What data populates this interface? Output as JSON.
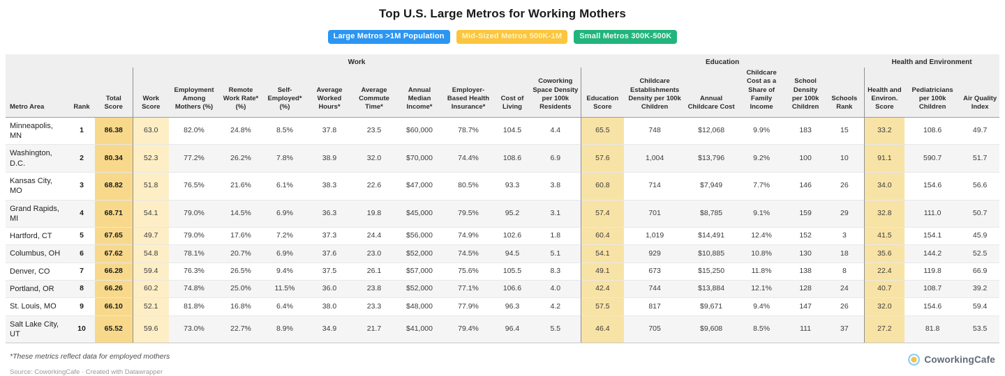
{
  "chart_data": {
    "type": "table",
    "title": "Top U.S. Large Metros for Working Mothers",
    "groups": [
      {
        "label": "",
        "span": 3
      },
      {
        "label": "Work",
        "span": 10
      },
      {
        "label": "Education",
        "span": 6
      },
      {
        "label": "Health and Environment",
        "span": 3
      }
    ],
    "columns": [
      {
        "label": "Metro Area",
        "align": "left"
      },
      {
        "label": "Rank",
        "bold": true
      },
      {
        "label": "Total Score",
        "bold": true,
        "highlight": "#f8d98b"
      },
      {
        "label": "Work Score",
        "highlight": "#fdeec6",
        "sep": true
      },
      {
        "label": "Employment Among Mothers (%)"
      },
      {
        "label": "Remote Work Rate* (%)"
      },
      {
        "label": "Self-Employed* (%)"
      },
      {
        "label": "Average Worked Hours*"
      },
      {
        "label": "Average Commute Time*"
      },
      {
        "label": "Annual Median Income*"
      },
      {
        "label": "Employer-Based Health Insurance*"
      },
      {
        "label": "Cost of Living"
      },
      {
        "label": "Coworking Space Density per 100k Residents"
      },
      {
        "label": "Education Score",
        "highlight": "#f8e3a6",
        "sep": true
      },
      {
        "label": "Childcare Establishments Density per 100k Children"
      },
      {
        "label": "Annual Childcare Cost"
      },
      {
        "label": "Childcare Cost as a Share of Family Income"
      },
      {
        "label": "School Density per 100k Children"
      },
      {
        "label": "Schools Rank"
      },
      {
        "label": "Health and Environ. Score",
        "highlight": "#f8e3a6",
        "sep": true
      },
      {
        "label": "Pediatricians per 100k Children"
      },
      {
        "label": "Air Quality Index"
      }
    ],
    "rows": [
      [
        "Minneapolis, MN",
        "1",
        "86.38",
        "63.0",
        "82.0%",
        "24.8%",
        "8.5%",
        "37.8",
        "23.5",
        "$60,000",
        "78.7%",
        "104.5",
        "4.4",
        "65.5",
        "748",
        "$12,068",
        "9.9%",
        "183",
        "15",
        "33.2",
        "108.6",
        "49.7"
      ],
      [
        "Washington, D.C.",
        "2",
        "80.34",
        "52.3",
        "77.2%",
        "26.2%",
        "7.8%",
        "38.9",
        "32.0",
        "$70,000",
        "74.4%",
        "108.6",
        "6.9",
        "57.6",
        "1,004",
        "$13,796",
        "9.2%",
        "100",
        "10",
        "91.1",
        "590.7",
        "51.7"
      ],
      [
        "Kansas City, MO",
        "3",
        "68.82",
        "51.8",
        "76.5%",
        "21.6%",
        "6.1%",
        "38.3",
        "22.6",
        "$47,000",
        "80.5%",
        "93.3",
        "3.8",
        "60.8",
        "714",
        "$7,949",
        "7.7%",
        "146",
        "26",
        "34.0",
        "154.6",
        "56.6"
      ],
      [
        "Grand Rapids, MI",
        "4",
        "68.71",
        "54.1",
        "79.0%",
        "14.5%",
        "6.9%",
        "36.3",
        "19.8",
        "$45,000",
        "79.5%",
        "95.2",
        "3.1",
        "57.4",
        "701",
        "$8,785",
        "9.1%",
        "159",
        "29",
        "32.8",
        "111.0",
        "50.7"
      ],
      [
        "Hartford, CT",
        "5",
        "67.65",
        "49.7",
        "79.0%",
        "17.6%",
        "7.2%",
        "37.3",
        "24.4",
        "$56,000",
        "74.9%",
        "102.6",
        "1.8",
        "60.4",
        "1,019",
        "$14,491",
        "12.4%",
        "152",
        "3",
        "41.5",
        "154.1",
        "45.9"
      ],
      [
        "Columbus, OH",
        "6",
        "67.62",
        "54.8",
        "78.1%",
        "20.7%",
        "6.9%",
        "37.6",
        "23.0",
        "$52,000",
        "74.5%",
        "94.5",
        "5.1",
        "54.1",
        "929",
        "$10,885",
        "10.8%",
        "130",
        "18",
        "35.6",
        "144.2",
        "52.5"
      ],
      [
        "Denver, CO",
        "7",
        "66.28",
        "59.4",
        "76.3%",
        "26.5%",
        "9.4%",
        "37.5",
        "26.1",
        "$57,000",
        "75.6%",
        "105.5",
        "8.3",
        "49.1",
        "673",
        "$15,250",
        "11.8%",
        "138",
        "8",
        "22.4",
        "119.8",
        "66.9"
      ],
      [
        "Portland, OR",
        "8",
        "66.26",
        "60.2",
        "74.8%",
        "25.0%",
        "11.5%",
        "36.0",
        "23.8",
        "$52,000",
        "77.1%",
        "106.6",
        "4.0",
        "42.4",
        "744",
        "$13,884",
        "12.1%",
        "128",
        "24",
        "40.7",
        "108.7",
        "39.2"
      ],
      [
        "St. Louis, MO",
        "9",
        "66.10",
        "52.1",
        "81.8%",
        "16.8%",
        "6.4%",
        "38.0",
        "23.3",
        "$48,000",
        "77.9%",
        "96.3",
        "4.2",
        "57.5",
        "817",
        "$9,671",
        "9.4%",
        "147",
        "26",
        "32.0",
        "154.6",
        "59.4"
      ],
      [
        "Salt Lake City, UT",
        "10",
        "65.52",
        "59.6",
        "73.0%",
        "22.7%",
        "8.9%",
        "34.9",
        "21.7",
        "$41,000",
        "79.4%",
        "96.4",
        "5.5",
        "46.4",
        "705",
        "$9,608",
        "8.5%",
        "111",
        "37",
        "27.2",
        "81.8",
        "53.5"
      ]
    ]
  },
  "legend": [
    {
      "label": "Large Metros >1M Population",
      "color": "#2b95f2",
      "text_color": "#ffffff"
    },
    {
      "label": "Mid-Sized Metros 500K-1M",
      "color": "#fbc53e",
      "text_color": "#fff3c4"
    },
    {
      "label": "Small Metros 300K-500K",
      "color": "#22b47d",
      "text_color": "#eafaf1"
    }
  ],
  "footnote": "*These metrics reflect data for employed mothers",
  "source": "Source: CoworkingCafe · Created with Datawrapper",
  "logo_text": "CoworkingCafe"
}
